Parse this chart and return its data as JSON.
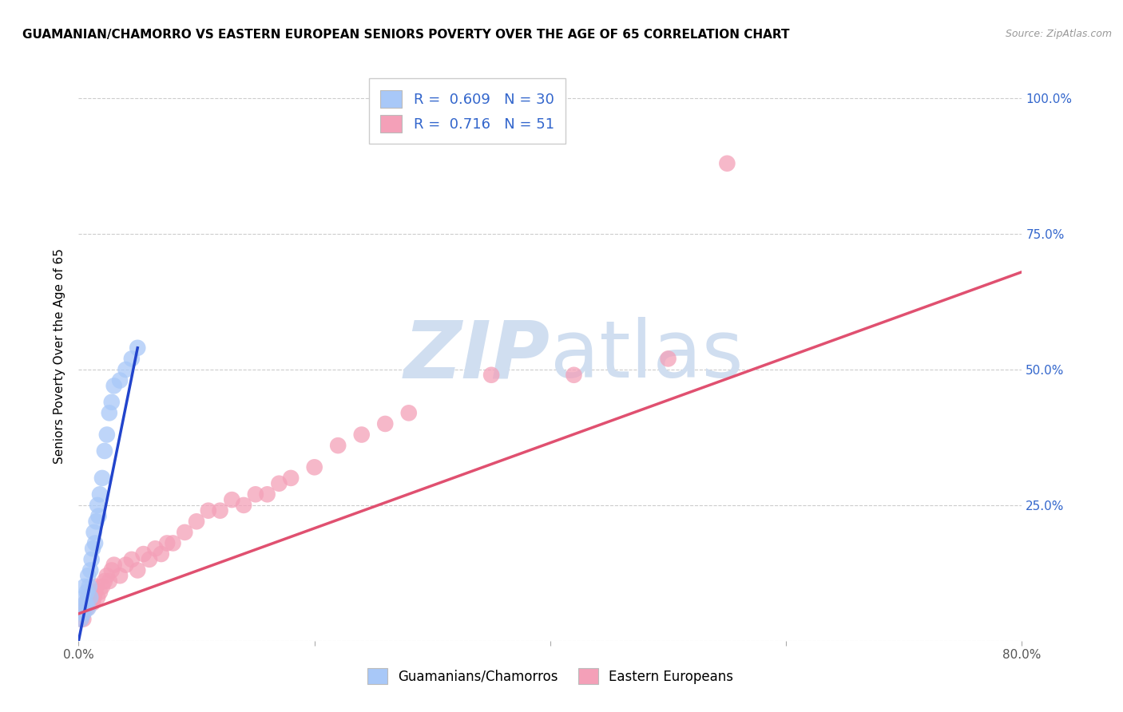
{
  "title": "GUAMANIAN/CHAMORRO VS EASTERN EUROPEAN SENIORS POVERTY OVER THE AGE OF 65 CORRELATION CHART",
  "source": "Source: ZipAtlas.com",
  "ylabel": "Seniors Poverty Over the Age of 65",
  "xlim": [
    0.0,
    0.8
  ],
  "ylim": [
    0.0,
    1.05
  ],
  "guamanian_color": "#A8C8F8",
  "eastern_color": "#F4A0B8",
  "guamanian_line_color": "#2244CC",
  "eastern_line_color": "#E05070",
  "guamanian_R": 0.609,
  "guamanian_N": 30,
  "eastern_R": 0.716,
  "eastern_N": 51,
  "legend_text_color": "#3366CC",
  "watermark_zip": "ZIP",
  "watermark_atlas": "atlas",
  "watermark_color": "#D0DEF0",
  "background_color": "#FFFFFF",
  "guamanian_scatter_x": [
    0.002,
    0.003,
    0.004,
    0.005,
    0.005,
    0.006,
    0.007,
    0.008,
    0.008,
    0.009,
    0.01,
    0.01,
    0.011,
    0.012,
    0.013,
    0.014,
    0.015,
    0.016,
    0.017,
    0.018,
    0.02,
    0.022,
    0.024,
    0.026,
    0.028,
    0.03,
    0.035,
    0.04,
    0.045,
    0.05
  ],
  "guamanian_scatter_y": [
    0.04,
    0.06,
    0.05,
    0.08,
    0.1,
    0.07,
    0.09,
    0.12,
    0.06,
    0.1,
    0.13,
    0.08,
    0.15,
    0.17,
    0.2,
    0.18,
    0.22,
    0.25,
    0.23,
    0.27,
    0.3,
    0.35,
    0.38,
    0.42,
    0.44,
    0.47,
    0.48,
    0.5,
    0.52,
    0.54
  ],
  "eastern_scatter_x": [
    0.002,
    0.003,
    0.004,
    0.005,
    0.006,
    0.007,
    0.008,
    0.009,
    0.01,
    0.011,
    0.012,
    0.013,
    0.014,
    0.015,
    0.016,
    0.018,
    0.02,
    0.022,
    0.024,
    0.026,
    0.028,
    0.03,
    0.035,
    0.04,
    0.045,
    0.05,
    0.055,
    0.06,
    0.065,
    0.07,
    0.075,
    0.08,
    0.09,
    0.1,
    0.11,
    0.12,
    0.13,
    0.14,
    0.15,
    0.16,
    0.17,
    0.18,
    0.2,
    0.22,
    0.24,
    0.26,
    0.28,
    0.35,
    0.42,
    0.5,
    0.55
  ],
  "eastern_scatter_y": [
    0.04,
    0.05,
    0.04,
    0.06,
    0.07,
    0.06,
    0.08,
    0.07,
    0.08,
    0.09,
    0.07,
    0.08,
    0.09,
    0.1,
    0.08,
    0.09,
    0.1,
    0.11,
    0.12,
    0.11,
    0.13,
    0.14,
    0.12,
    0.14,
    0.15,
    0.13,
    0.16,
    0.15,
    0.17,
    0.16,
    0.18,
    0.18,
    0.2,
    0.22,
    0.24,
    0.24,
    0.26,
    0.25,
    0.27,
    0.27,
    0.29,
    0.3,
    0.32,
    0.36,
    0.38,
    0.4,
    0.42,
    0.49,
    0.49,
    0.52,
    0.88
  ],
  "guam_line_x": [
    0.0,
    0.05
  ],
  "guam_line_y": [
    0.0,
    0.54
  ],
  "east_line_x": [
    0.0,
    0.8
  ],
  "east_line_y": [
    0.05,
    0.68
  ]
}
